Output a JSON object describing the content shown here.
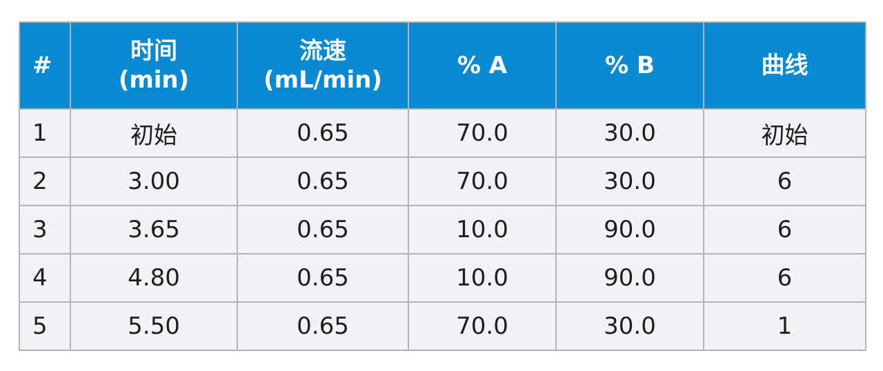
{
  "table": {
    "header": [
      [
        "#"
      ],
      [
        "时间",
        "(min)"
      ],
      [
        "流速",
        "(mL/min)"
      ],
      [
        "% A"
      ],
      [
        "% B"
      ],
      [
        "曲线"
      ]
    ],
    "rows": [
      [
        "1",
        "初始",
        "0.65",
        "70.0",
        "30.0",
        "初始"
      ],
      [
        "2",
        "3.00",
        "0.65",
        "70.0",
        "30.0",
        "6"
      ],
      [
        "3",
        "3.65",
        "0.65",
        "10.0",
        "90.0",
        "6"
      ],
      [
        "4",
        "4.80",
        "0.65",
        "10.0",
        "90.0",
        "6"
      ],
      [
        "5",
        "5.50",
        "0.65",
        "70.0",
        "30.0",
        "1"
      ]
    ]
  }
}
